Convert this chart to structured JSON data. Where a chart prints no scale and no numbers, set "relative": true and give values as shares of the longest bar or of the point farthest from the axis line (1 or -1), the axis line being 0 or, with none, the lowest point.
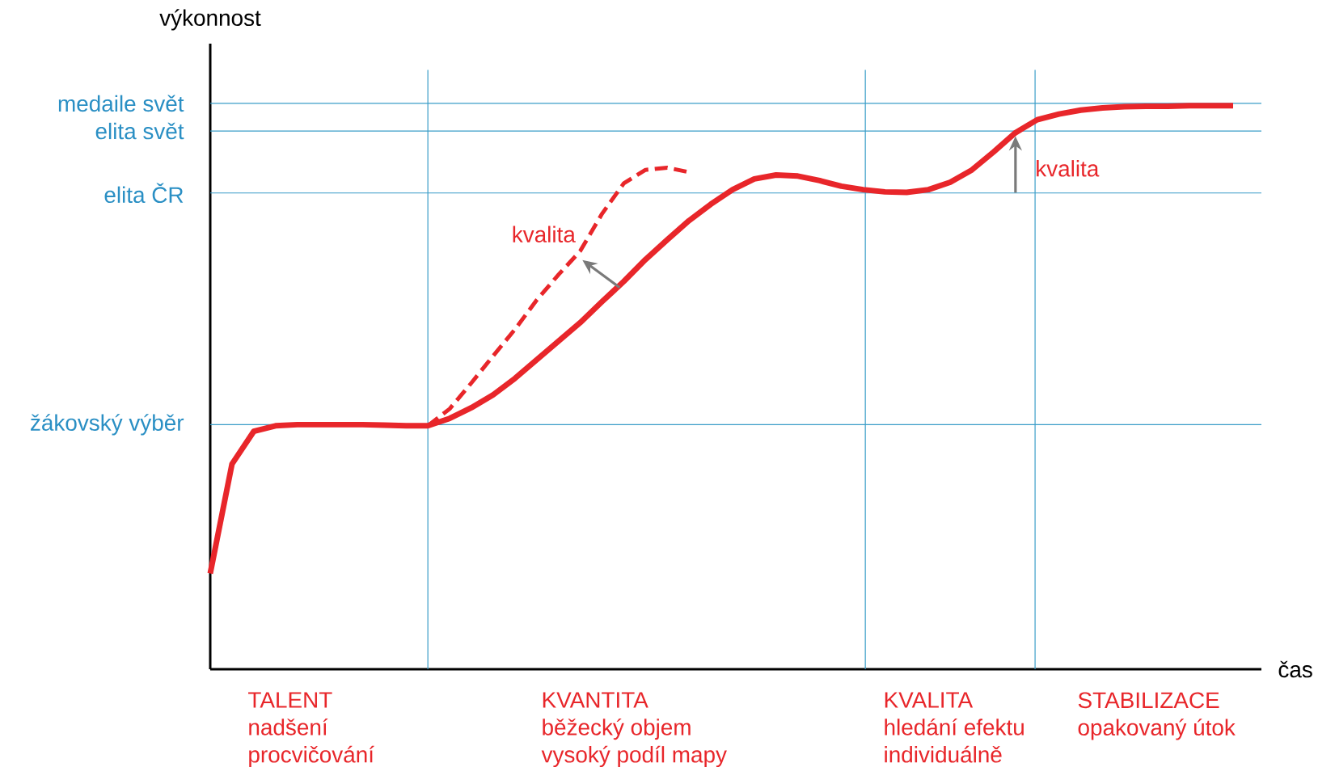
{
  "chart_data": {
    "type": "line",
    "relative": true,
    "xlabel": "čas",
    "ylabel": "výkonnost",
    "tick_labels": false,
    "categories": [
      null,
      null,
      null,
      null,
      null,
      null,
      null,
      null,
      null,
      null,
      null,
      null,
      null,
      null,
      null,
      null,
      null,
      null,
      null,
      null,
      null,
      null,
      null,
      null,
      null,
      null,
      null,
      null,
      null,
      null,
      null,
      null,
      null,
      null,
      null,
      null,
      null,
      null,
      null,
      null,
      null,
      null,
      null,
      null,
      null,
      null,
      null,
      null
    ],
    "series": [
      {
        "color": "#e8262a",
        "line_style": "solid",
        "values": [
          0.17,
          0.364,
          0.422,
          0.432,
          0.434,
          0.434,
          0.434,
          0.434,
          0.433,
          0.432,
          0.432,
          0.445,
          0.464,
          0.487,
          0.516,
          0.549,
          0.582,
          0.615,
          0.652,
          0.688,
          0.727,
          0.762,
          0.796,
          0.825,
          0.851,
          0.87,
          0.877,
          0.875,
          0.867,
          0.857,
          0.851,
          0.847,
          0.846,
          0.851,
          0.864,
          0.886,
          0.918,
          0.952,
          0.975,
          0.985,
          0.992,
          0.996,
          0.998,
          0.999,
          0.999,
          1.0,
          1.0,
          1.0
        ]
      },
      {
        "color": "#e8262a",
        "line_style": "dashed",
        "values": [
          null,
          null,
          null,
          null,
          null,
          null,
          null,
          null,
          null,
          null,
          0.432,
          0.462,
          0.508,
          0.556,
          0.603,
          0.655,
          0.7,
          0.742,
          0.808,
          0.862,
          0.886,
          0.89,
          0.882,
          null,
          null,
          null,
          null,
          null,
          null,
          null,
          null,
          null,
          null,
          null,
          null,
          null,
          null,
          null,
          null,
          null,
          null,
          null,
          null,
          null,
          null,
          null,
          null,
          null
        ]
      }
    ],
    "ref_lines": [
      {
        "axis": "y",
        "value": 1.004,
        "label": "medaile svět",
        "color": "#3a9dc8"
      },
      {
        "axis": "y",
        "value": 0.955,
        "label": "elita svět",
        "color": "#3a9dc8"
      },
      {
        "axis": "y",
        "value": 0.845,
        "label": "elita ČR",
        "color": "#3a9dc8"
      },
      {
        "axis": "y",
        "value": 0.434,
        "label": "žákovský výběr",
        "color": "#3a9dc8"
      }
    ],
    "grid": "x",
    "annotations": [
      "kvalita",
      "kvalita",
      "TALENT",
      "nadšení",
      "procvičování",
      "KVANTITA",
      "běžecký objem",
      "vysoký podíl mapy",
      "KVALITA",
      "hledání efektu",
      "individuálně",
      "STABILIZACE",
      "opakovaný útok"
    ]
  }
}
